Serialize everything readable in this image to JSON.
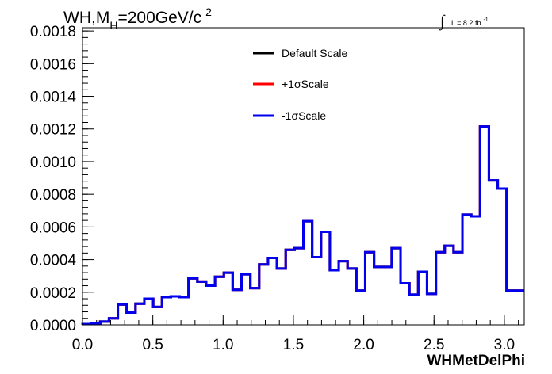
{
  "chart_data": {
    "type": "line",
    "title_main": "WH,M",
    "title_sub": "H",
    "title_rest": "=200GeV/c",
    "title_sup": "2",
    "lumi_text": "L = 8.2 fb",
    "lumi_sup": "-1",
    "xlabel": "WHMetDelPhi",
    "ylabel": "",
    "xlim": [
      0,
      3.1416
    ],
    "ylim": [
      0,
      0.00182
    ],
    "x_ticks": [
      {
        "value": 0.0,
        "label": "0.0"
      },
      {
        "value": 0.5,
        "label": "0.5"
      },
      {
        "value": 1.0,
        "label": "1.0"
      },
      {
        "value": 1.5,
        "label": "1.5"
      },
      {
        "value": 2.0,
        "label": "2.0"
      },
      {
        "value": 2.5,
        "label": "2.5"
      },
      {
        "value": 3.0,
        "label": "3.0"
      }
    ],
    "y_ticks": [
      {
        "value": 0.0,
        "label": "0.0000"
      },
      {
        "value": 0.0002,
        "label": "0.0002"
      },
      {
        "value": 0.0004,
        "label": "0.0004"
      },
      {
        "value": 0.0006,
        "label": "0.0006"
      },
      {
        "value": 0.0008,
        "label": "0.0008"
      },
      {
        "value": 0.001,
        "label": "0.0010"
      },
      {
        "value": 0.0012,
        "label": "0.0012"
      },
      {
        "value": 0.0014,
        "label": "0.0014"
      },
      {
        "value": 0.0016,
        "label": "0.0016"
      },
      {
        "value": 0.0018,
        "label": "0.0018"
      }
    ],
    "bin_edges": [
      0.0,
      0.0628,
      0.1257,
      0.1885,
      0.2513,
      0.3142,
      0.377,
      0.4398,
      0.5027,
      0.5655,
      0.6283,
      0.6912,
      0.754,
      0.8168,
      0.8796,
      0.9425,
      1.0053,
      1.0681,
      1.131,
      1.1938,
      1.2566,
      1.3195,
      1.3823,
      1.4451,
      1.508,
      1.5708,
      1.6336,
      1.6965,
      1.7593,
      1.8221,
      1.885,
      1.9478,
      2.0106,
      2.0735,
      2.1363,
      2.1991,
      2.2619,
      2.3248,
      2.3876,
      2.4504,
      2.5133,
      2.5761,
      2.6389,
      2.7018,
      2.7646,
      2.8274,
      2.8903,
      2.9531,
      3.0159,
      3.0788,
      3.1416
    ],
    "legend_position": "top-center",
    "series": [
      {
        "name": "Default Scale",
        "color": "#000000",
        "values": [
          5e-06,
          1e-05,
          2e-05,
          4e-05,
          0.000125,
          7.5e-05,
          0.00013,
          0.00016,
          0.00011,
          0.00017,
          0.000175,
          0.00017,
          0.000285,
          0.000265,
          0.00024,
          0.000295,
          0.00032,
          0.000215,
          0.00031,
          0.000225,
          0.00037,
          0.00041,
          0.000345,
          0.00046,
          0.00047,
          0.000635,
          0.000415,
          0.00057,
          0.000335,
          0.00039,
          0.000345,
          0.00021,
          0.000445,
          0.000355,
          0.000355,
          0.00047,
          0.000255,
          0.000185,
          0.000325,
          0.00019,
          0.000445,
          0.000485,
          0.000445,
          0.000675,
          0.000665,
          0.001215,
          0.000885,
          0.000835,
          0.00021,
          0.00021
        ]
      },
      {
        "name": "+1σScale",
        "color": "#ff0000",
        "values": [
          5e-06,
          1e-05,
          2e-05,
          4e-05,
          0.000125,
          7.5e-05,
          0.00013,
          0.00016,
          0.00011,
          0.00017,
          0.000175,
          0.00017,
          0.000285,
          0.000265,
          0.00024,
          0.000295,
          0.00032,
          0.000215,
          0.00031,
          0.000225,
          0.00037,
          0.00041,
          0.000345,
          0.00046,
          0.00047,
          0.000635,
          0.000415,
          0.00057,
          0.000335,
          0.00039,
          0.000345,
          0.00021,
          0.000445,
          0.000355,
          0.000355,
          0.00047,
          0.000255,
          0.000185,
          0.000325,
          0.00019,
          0.000445,
          0.000485,
          0.000445,
          0.000675,
          0.000665,
          0.001215,
          0.000885,
          0.000835,
          0.00021,
          0.00021
        ]
      },
      {
        "name": "-1σScale",
        "color": "#0000ee",
        "values": [
          5e-06,
          1e-05,
          2e-05,
          4e-05,
          0.000125,
          7.5e-05,
          0.00013,
          0.00016,
          0.00011,
          0.00017,
          0.000175,
          0.00017,
          0.000285,
          0.000265,
          0.00024,
          0.000295,
          0.00032,
          0.000215,
          0.00031,
          0.000225,
          0.00037,
          0.00041,
          0.000345,
          0.00046,
          0.00047,
          0.000635,
          0.000415,
          0.00057,
          0.000335,
          0.00039,
          0.000345,
          0.00021,
          0.000445,
          0.000355,
          0.000355,
          0.00047,
          0.000255,
          0.000185,
          0.000325,
          0.00019,
          0.000445,
          0.000485,
          0.000445,
          0.000675,
          0.000665,
          0.001215,
          0.000885,
          0.000835,
          0.00021,
          0.00021
        ]
      }
    ]
  }
}
